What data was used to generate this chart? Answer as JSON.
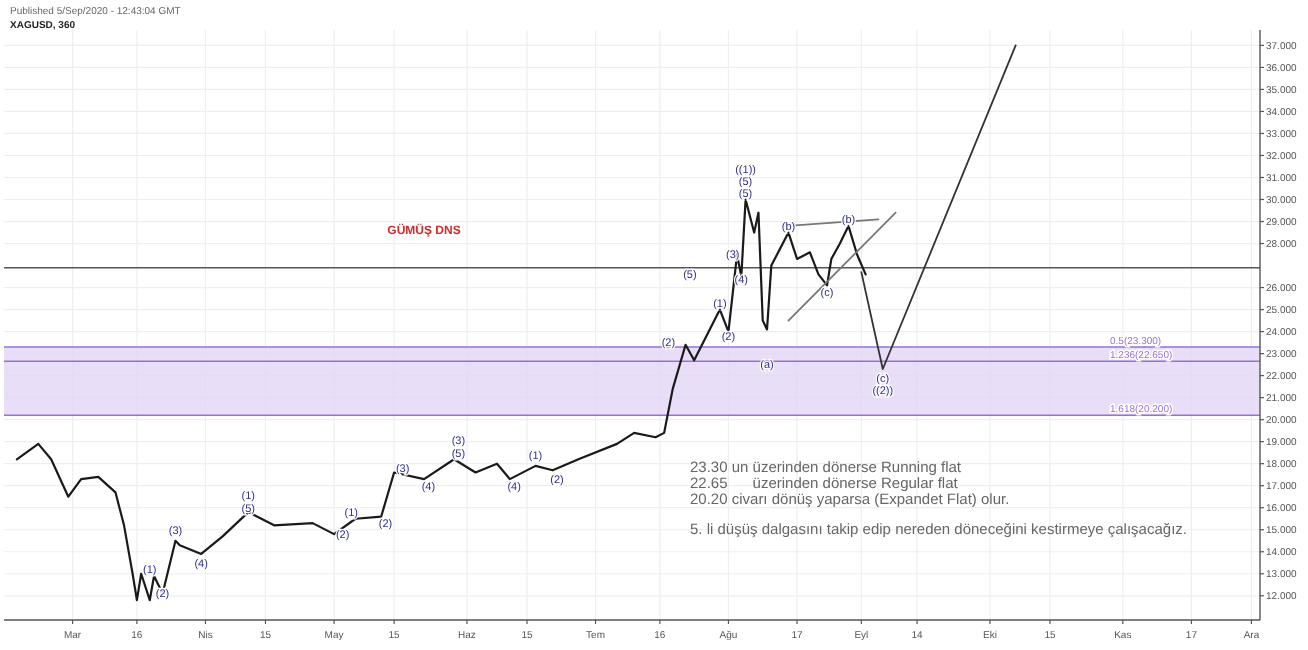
{
  "chart_data": {
    "type": "line",
    "title": "XAGUSD, 360",
    "subtitle": "Published 5/Sep/2020 - 12:43:04 GMT",
    "xlim": [
      "2020-02-14",
      "2020-12-03"
    ],
    "ylim": [
      10.9,
      37.7
    ],
    "xticks": [
      {
        "value": "2020-03-01",
        "label": "Mar"
      },
      {
        "value": "2020-03-16",
        "label": "16"
      },
      {
        "value": "2020-04-01",
        "label": "Nis"
      },
      {
        "value": "2020-04-15",
        "label": "15"
      },
      {
        "value": "2020-05-01",
        "label": "May"
      },
      {
        "value": "2020-05-15",
        "label": "15"
      },
      {
        "value": "2020-06-01",
        "label": "Haz"
      },
      {
        "value": "2020-06-15",
        "label": "15"
      },
      {
        "value": "2020-07-01",
        "label": "Tem"
      },
      {
        "value": "2020-07-16",
        "label": "16"
      },
      {
        "value": "2020-08-01",
        "label": "Ağu"
      },
      {
        "value": "2020-08-17",
        "label": "17"
      },
      {
        "value": "2020-09-01",
        "label": "Eyl"
      },
      {
        "value": "2020-09-14",
        "label": "14"
      },
      {
        "value": "2020-10-01",
        "label": "Eki"
      },
      {
        "value": "2020-10-15",
        "label": "15"
      },
      {
        "value": "2020-11-01",
        "label": "Kas"
      },
      {
        "value": "2020-11-17",
        "label": "17"
      },
      {
        "value": "2020-12-01",
        "label": "Ara"
      }
    ],
    "yticks": [
      {
        "value": 12,
        "label": "12.000"
      },
      {
        "value": 13,
        "label": "13.000"
      },
      {
        "value": 14,
        "label": "14.000"
      },
      {
        "value": 15,
        "label": "15.000"
      },
      {
        "value": 16,
        "label": "16.000"
      },
      {
        "value": 17,
        "label": "17.000"
      },
      {
        "value": 18,
        "label": "18.000"
      },
      {
        "value": 19,
        "label": "19.000"
      },
      {
        "value": 20,
        "label": "20.000"
      },
      {
        "value": 21,
        "label": "21.000"
      },
      {
        "value": 22,
        "label": "22.000"
      },
      {
        "value": 23,
        "label": "23.000"
      },
      {
        "value": 24,
        "label": "24.000"
      },
      {
        "value": 25,
        "label": "25.000"
      },
      {
        "value": 26,
        "label": "26.000"
      },
      {
        "value": 28,
        "label": "28.000"
      },
      {
        "value": 29,
        "label": "29.000"
      },
      {
        "value": 30,
        "label": "30.000"
      },
      {
        "value": 31,
        "label": "31.000"
      },
      {
        "value": 32,
        "label": "32.000"
      },
      {
        "value": 33,
        "label": "33.000"
      },
      {
        "value": 34,
        "label": "34.000"
      },
      {
        "value": 35,
        "label": "35.000"
      },
      {
        "value": 36,
        "label": "36.000"
      },
      {
        "value": 37,
        "label": "37.000"
      }
    ],
    "grid": true,
    "marker": "none",
    "line_style": "solid",
    "series": [
      {
        "color": "#1a1a1a",
        "x": [
          "2020-02-17",
          "2020-02-22",
          "2020-02-25",
          "2020-02-29",
          "2020-03-03",
          "2020-03-07",
          "2020-03-11",
          "2020-03-13",
          "2020-03-15",
          "2020-03-16",
          "2020-03-17",
          "2020-03-19",
          "2020-03-20",
          "2020-03-22",
          "2020-03-25",
          "2020-03-26",
          "2020-03-31",
          "2020-04-05",
          "2020-04-11",
          "2020-04-17",
          "2020-04-26",
          "2020-05-01",
          "2020-05-06",
          "2020-05-12",
          "2020-05-15",
          "2020-05-22",
          "2020-05-29",
          "2020-06-03",
          "2020-06-08",
          "2020-06-11",
          "2020-06-17",
          "2020-06-21",
          "2020-06-27",
          "2020-07-06",
          "2020-07-10",
          "2020-07-15",
          "2020-07-17",
          "2020-07-19",
          "2020-07-22",
          "2020-07-24",
          "2020-07-30",
          "2020-08-01",
          "2020-08-03",
          "2020-08-04",
          "2020-08-05",
          "2020-08-07",
          "2020-08-08",
          "2020-08-09",
          "2020-08-10",
          "2020-08-11",
          "2020-08-15",
          "2020-08-17",
          "2020-08-20",
          "2020-08-22",
          "2020-08-24",
          "2020-08-25",
          "2020-08-27",
          "2020-08-29",
          "2020-08-31",
          "2020-09-02"
        ],
        "values": [
          18.2,
          18.9,
          18.2,
          16.5,
          17.3,
          17.4,
          16.7,
          15.2,
          13.0,
          11.8,
          13.0,
          11.8,
          12.9,
          12.1,
          14.5,
          14.3,
          13.9,
          14.7,
          15.8,
          15.2,
          15.3,
          14.8,
          15.5,
          15.6,
          17.6,
          17.3,
          18.2,
          17.6,
          18.0,
          17.3,
          17.9,
          17.7,
          18.2,
          18.9,
          19.4,
          19.2,
          19.4,
          21.4,
          23.4,
          22.7,
          25.0,
          24.0,
          27.5,
          26.5,
          30.0,
          28.5,
          29.4,
          24.5,
          24.1,
          27.0,
          28.5,
          27.3,
          27.6,
          26.6,
          26.1,
          27.3,
          28.0,
          28.8,
          27.5,
          26.6
        ]
      },
      {
        "color": "#333333",
        "x": [
          "2020-09-01",
          "2020-09-06",
          "2020-10-07"
        ],
        "values": [
          26.7,
          22.3,
          37.0
        ]
      },
      {
        "color": "#777777",
        "x": [
          "2020-08-15",
          "2020-09-05"
        ],
        "values": [
          28.8,
          29.1
        ]
      },
      {
        "color": "#777777",
        "x": [
          "2020-08-15",
          "2020-09-09"
        ],
        "values": [
          24.5,
          29.4
        ]
      }
    ],
    "bands": [
      {
        "axis": "y",
        "from": 20.2,
        "to": 23.3,
        "color": "#e2d6f5"
      }
    ],
    "ref_lines": [
      {
        "axis": "y",
        "value": 23.3,
        "label": "0.5(23.300)",
        "color": "#9a70d8"
      },
      {
        "axis": "y",
        "value": 22.65,
        "label": "1.236(22.650)",
        "color": "#9a70d8"
      },
      {
        "axis": "y",
        "value": 20.2,
        "label": "1.618(20.200)",
        "color": "#9a70d8"
      },
      {
        "axis": "y",
        "value": 26.9,
        "color": "#555555"
      }
    ],
    "annotations": [
      "GÜMÜŞ DNS",
      "23.30 un üzerinden dönerse Running flat",
      "22.65      üzerinden dönerse Regular flat",
      "20.20 civarı dönüş yaparsa (Expandet Flat) olur.",
      "5. li düşüş dalgasını takip edip nereden döneceğini kestirmeye çalışacağız.",
      {
        "text": "(1)",
        "x": "2020-03-19",
        "y": 13.2
      },
      {
        "text": "(2)",
        "x": "2020-03-22",
        "y": 12.1
      },
      {
        "text": "(3)",
        "x": "2020-03-25",
        "y": 15.0
      },
      {
        "text": "(4)",
        "x": "2020-03-31",
        "y": 13.5
      },
      {
        "text": "(1)\n(5)",
        "x": "2020-04-11",
        "y": 16.0
      },
      {
        "text": "(2)",
        "x": "2020-05-03",
        "y": 14.8
      },
      {
        "text": "(1)",
        "x": "2020-05-05",
        "y": 15.8
      },
      {
        "text": "(2)",
        "x": "2020-05-13",
        "y": 15.3
      },
      {
        "text": "(3)",
        "x": "2020-05-17",
        "y": 17.8
      },
      {
        "text": "(4)",
        "x": "2020-05-23",
        "y": 17.0
      },
      {
        "text": "(3)\n(5)",
        "x": "2020-05-30",
        "y": 18.5
      },
      {
        "text": "(4)",
        "x": "2020-06-12",
        "y": 17.0
      },
      {
        "text": "(1)",
        "x": "2020-06-17",
        "y": 18.4
      },
      {
        "text": "(2)",
        "x": "2020-06-22",
        "y": 17.3
      },
      {
        "text": "(2)",
        "x": "2020-07-18",
        "y": 23.5
      },
      {
        "text": "(5)",
        "x": "2020-07-23",
        "y": 26.6
      },
      {
        "text": "(1)",
        "x": "2020-07-30",
        "y": 25.3
      },
      {
        "text": "(2)",
        "x": "2020-08-01",
        "y": 23.8
      },
      {
        "text": "(3)",
        "x": "2020-08-02",
        "y": 27.5
      },
      {
        "text": "(4)",
        "x": "2020-08-04",
        "y": 26.4
      },
      {
        "text": "((1))\n(5)\n(5)",
        "x": "2020-08-05",
        "y": 30.3
      },
      {
        "text": "(a)",
        "x": "2020-08-10",
        "y": 22.5
      },
      {
        "text": "(b)",
        "x": "2020-08-15",
        "y": 28.8
      },
      {
        "text": "(c)",
        "x": "2020-08-24",
        "y": 25.8
      },
      {
        "text": "(b)",
        "x": "2020-08-29",
        "y": 29.1
      },
      {
        "text": "(c)\n((2))",
        "x": "2020-09-06",
        "y": 21.9
      }
    ]
  }
}
